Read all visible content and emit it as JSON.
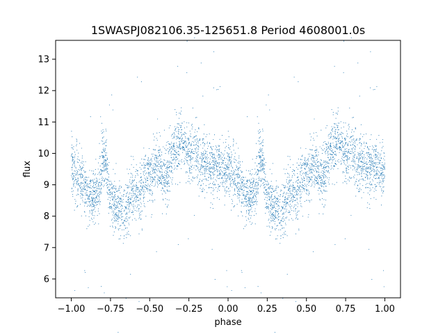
{
  "chart_data": {
    "type": "scatter",
    "title": "1SWASPJ082106.35-125651.8 Period 4608001.0s",
    "xlabel": "phase",
    "ylabel": "flux",
    "xlim": [
      -1.1,
      1.1
    ],
    "ylim": [
      5.4,
      13.6
    ],
    "xticks": [
      -1.0,
      -0.75,
      -0.5,
      -0.25,
      0.0,
      0.25,
      0.5,
      0.75,
      1.0
    ],
    "xtick_labels": [
      "−1.00",
      "−0.75",
      "−0.50",
      "−0.25",
      "0.00",
      "0.25",
      "0.50",
      "0.75",
      "1.00"
    ],
    "yticks": [
      6,
      7,
      8,
      9,
      10,
      11,
      12,
      13
    ],
    "ytick_labels": [
      "6",
      "7",
      "8",
      "9",
      "10",
      "11",
      "12",
      "13"
    ],
    "grid": false,
    "legend": "none",
    "marker_color": "#1f77b4",
    "series": [
      {
        "phase_profile": [
          [
            0.0,
            9.5
          ],
          [
            0.03,
            9.4
          ],
          [
            0.06,
            9.2
          ],
          [
            0.09,
            8.9
          ],
          [
            0.12,
            8.6
          ],
          [
            0.15,
            8.7
          ],
          [
            0.18,
            8.9
          ],
          [
            0.2,
            9.9
          ],
          [
            0.22,
            9.7
          ],
          [
            0.25,
            8.5
          ],
          [
            0.28,
            8.3
          ],
          [
            0.31,
            8.2
          ],
          [
            0.34,
            8.1
          ],
          [
            0.37,
            8.5
          ],
          [
            0.4,
            8.9
          ],
          [
            0.43,
            8.6
          ],
          [
            0.46,
            9.1
          ],
          [
            0.49,
            9.3
          ],
          [
            0.52,
            9.4
          ],
          [
            0.55,
            9.8
          ],
          [
            0.58,
            9.4
          ],
          [
            0.61,
            9.2
          ],
          [
            0.64,
            9.9
          ],
          [
            0.67,
            10.2
          ],
          [
            0.7,
            10.4
          ],
          [
            0.73,
            10.1
          ],
          [
            0.76,
            9.9
          ],
          [
            0.79,
            10.2
          ],
          [
            0.82,
            9.8
          ],
          [
            0.85,
            9.7
          ],
          [
            0.88,
            9.6
          ],
          [
            0.91,
            9.5
          ],
          [
            0.94,
            9.6
          ],
          [
            0.97,
            9.5
          ],
          [
            1.0,
            9.5
          ]
        ],
        "scatter_sd": 0.45,
        "points_per_cycle": 2600
      }
    ]
  }
}
